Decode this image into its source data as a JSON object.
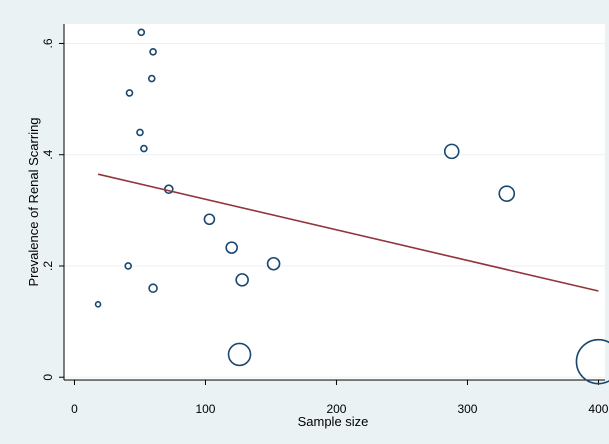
{
  "colors": {
    "figure_background": "#eaf2f3",
    "plot_background": "#ffffff",
    "gridline": "#eaf2f3",
    "marker_outline": "#1a476f",
    "fit_line": "#90353b",
    "axis": "#000000"
  },
  "chart_data": {
    "type": "scatter",
    "title": "",
    "xlabel": "Sample size",
    "ylabel": "Prevalence of Renal Scarring",
    "xlim": [
      -8,
      405
    ],
    "ylim": [
      -0.005,
      0.635
    ],
    "xticks": [
      {
        "value": 0,
        "label": "0"
      },
      {
        "value": 100,
        "label": "100"
      },
      {
        "value": 200,
        "label": "200"
      },
      {
        "value": 300,
        "label": "300"
      },
      {
        "value": 400,
        "label": "400"
      }
    ],
    "yticks": [
      {
        "value": 0,
        "label": "0"
      },
      {
        "value": 0.2,
        "label": ".2"
      },
      {
        "value": 0.4,
        "label": ".4"
      },
      {
        "value": 0.6,
        "label": ".6"
      }
    ],
    "grid": true,
    "legend": "none",
    "marker": "hollow circle, area proportional to weight",
    "series": [
      {
        "points": [
          {
            "x": 18,
            "y": 0.131,
            "r": 2.5
          },
          {
            "x": 41,
            "y": 0.2,
            "r": 3
          },
          {
            "x": 42,
            "y": 0.511,
            "r": 3
          },
          {
            "x": 50,
            "y": 0.44,
            "r": 3
          },
          {
            "x": 51,
            "y": 0.62,
            "r": 3
          },
          {
            "x": 53,
            "y": 0.411,
            "r": 3
          },
          {
            "x": 59,
            "y": 0.537,
            "r": 3
          },
          {
            "x": 60,
            "y": 0.585,
            "r": 3
          },
          {
            "x": 60,
            "y": 0.16,
            "r": 4
          },
          {
            "x": 72,
            "y": 0.338,
            "r": 4
          },
          {
            "x": 103,
            "y": 0.284,
            "r": 5
          },
          {
            "x": 120,
            "y": 0.233,
            "r": 5.5
          },
          {
            "x": 126,
            "y": 0.041,
            "r": 11
          },
          {
            "x": 128,
            "y": 0.175,
            "r": 6
          },
          {
            "x": 152,
            "y": 0.204,
            "r": 6
          },
          {
            "x": 288,
            "y": 0.406,
            "r": 7
          },
          {
            "x": 330,
            "y": 0.33,
            "r": 7.5
          },
          {
            "x": 400,
            "y": 0.028,
            "r": 22
          }
        ]
      }
    ],
    "fit_line": {
      "x": [
        18,
        400
      ],
      "y": [
        0.365,
        0.155
      ]
    }
  }
}
